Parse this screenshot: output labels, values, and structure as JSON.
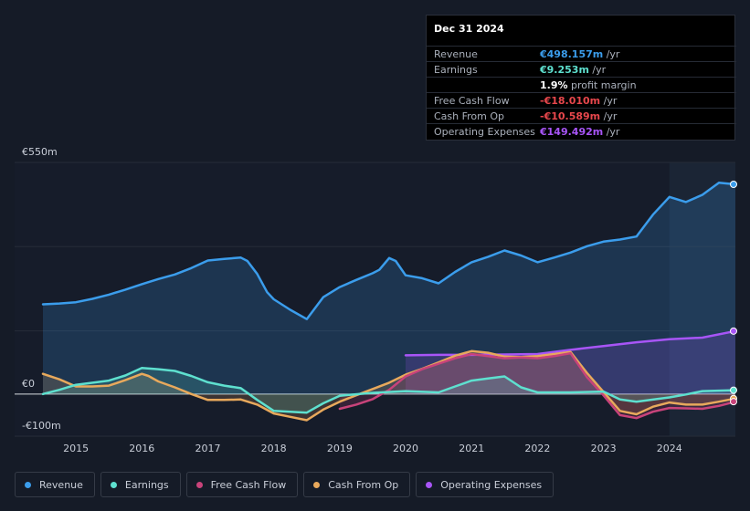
{
  "tooltip": {
    "date": "Dec 31 2024",
    "rows": [
      {
        "label": "Revenue",
        "value": "€498.157m",
        "unit": " /yr",
        "color": "#3b9dec"
      },
      {
        "label": "Earnings",
        "value": "€9.253m",
        "unit": " /yr",
        "color": "#5ee0cf"
      },
      {
        "label": "",
        "value": "1.9%",
        "unit": " profit margin",
        "color": "#ffffff"
      },
      {
        "label": "Free Cash Flow",
        "value": "-€18.010m",
        "unit": " /yr",
        "color": "#e8474c"
      },
      {
        "label": "Cash From Op",
        "value": "-€10.589m",
        "unit": " /yr",
        "color": "#e8474c"
      },
      {
        "label": "Operating Expenses",
        "value": "€149.492m",
        "unit": " /yr",
        "color": "#a855f7"
      }
    ]
  },
  "legend": [
    {
      "label": "Revenue",
      "color": "#3b9dec"
    },
    {
      "label": "Earnings",
      "color": "#5ee0cf"
    },
    {
      "label": "Free Cash Flow",
      "color": "#c8437a"
    },
    {
      "label": "Cash From Op",
      "color": "#e8a95c"
    },
    {
      "label": "Operating Expenses",
      "color": "#a855f7"
    }
  ],
  "chart_data": {
    "type": "area",
    "title": "",
    "xlabel": "",
    "ylabel": "",
    "y_axis_labels": [
      {
        "value": 550,
        "label": "€550m"
      },
      {
        "value": 0,
        "label": "€0"
      },
      {
        "value": -100,
        "label": "-€100m"
      }
    ],
    "ylim": [
      -100,
      550
    ],
    "xlim": [
      2014.5,
      2025.0
    ],
    "x_ticks": [
      2015,
      2016,
      2017,
      2018,
      2019,
      2020,
      2021,
      2022,
      2023,
      2024
    ],
    "highlight_from": 2024.0,
    "series": [
      {
        "name": "Revenue",
        "color": "#3b9dec",
        "points": [
          [
            2014.5,
            213
          ],
          [
            2014.75,
            215
          ],
          [
            2015,
            218
          ],
          [
            2015.25,
            226
          ],
          [
            2015.5,
            236
          ],
          [
            2015.75,
            248
          ],
          [
            2016,
            261
          ],
          [
            2016.25,
            273
          ],
          [
            2016.5,
            284
          ],
          [
            2016.75,
            299
          ],
          [
            2017,
            317
          ],
          [
            2017.25,
            321
          ],
          [
            2017.5,
            324
          ],
          [
            2017.6,
            316
          ],
          [
            2017.75,
            285
          ],
          [
            2017.9,
            242
          ],
          [
            2018,
            225
          ],
          [
            2018.25,
            200
          ],
          [
            2018.5,
            178
          ],
          [
            2018.75,
            230
          ],
          [
            2019,
            254
          ],
          [
            2019.25,
            271
          ],
          [
            2019.5,
            287
          ],
          [
            2019.6,
            295
          ],
          [
            2019.75,
            323
          ],
          [
            2019.85,
            316
          ],
          [
            2020,
            282
          ],
          [
            2020.25,
            275
          ],
          [
            2020.5,
            263
          ],
          [
            2020.75,
            290
          ],
          [
            2021,
            313
          ],
          [
            2021.25,
            326
          ],
          [
            2021.5,
            341
          ],
          [
            2021.75,
            329
          ],
          [
            2022,
            313
          ],
          [
            2022.25,
            324
          ],
          [
            2022.5,
            336
          ],
          [
            2022.75,
            351
          ],
          [
            2023,
            362
          ],
          [
            2023.25,
            367
          ],
          [
            2023.5,
            374
          ],
          [
            2023.75,
            426
          ],
          [
            2024,
            468
          ],
          [
            2024.25,
            456
          ],
          [
            2024.5,
            473
          ],
          [
            2024.75,
            502
          ],
          [
            2025,
            498
          ]
        ]
      },
      {
        "name": "Earnings",
        "color": "#5ee0cf",
        "points": [
          [
            2014.5,
            0
          ],
          [
            2014.75,
            10
          ],
          [
            2015,
            22
          ],
          [
            2015.5,
            32
          ],
          [
            2015.75,
            44
          ],
          [
            2016,
            62
          ],
          [
            2016.25,
            59
          ],
          [
            2016.5,
            55
          ],
          [
            2016.75,
            43
          ],
          [
            2017,
            28
          ],
          [
            2017.25,
            20
          ],
          [
            2017.5,
            14
          ],
          [
            2017.75,
            -14
          ],
          [
            2018,
            -40
          ],
          [
            2018.25,
            -42
          ],
          [
            2018.5,
            -44
          ],
          [
            2018.75,
            -22
          ],
          [
            2019,
            -4
          ],
          [
            2019.5,
            3
          ],
          [
            2020,
            7
          ],
          [
            2020.5,
            4
          ],
          [
            2020.75,
            18
          ],
          [
            2021,
            32
          ],
          [
            2021.25,
            37
          ],
          [
            2021.5,
            42
          ],
          [
            2021.75,
            16
          ],
          [
            2022,
            4
          ],
          [
            2022.5,
            4
          ],
          [
            2023,
            6
          ],
          [
            2023.25,
            -13
          ],
          [
            2023.5,
            -18
          ],
          [
            2024,
            -8
          ],
          [
            2024.25,
            -1
          ],
          [
            2024.5,
            7
          ],
          [
            2025,
            9.25
          ]
        ]
      },
      {
        "name": "Free Cash Flow",
        "color": "#c8437a",
        "points": [
          [
            2019,
            -35
          ],
          [
            2019.25,
            -25
          ],
          [
            2019.5,
            -12
          ],
          [
            2019.75,
            10
          ],
          [
            2020,
            42
          ],
          [
            2020.25,
            59
          ],
          [
            2020.5,
            72
          ],
          [
            2020.75,
            85
          ],
          [
            2021,
            95
          ],
          [
            2021.25,
            90
          ],
          [
            2021.5,
            85
          ],
          [
            2021.75,
            87
          ],
          [
            2022,
            85
          ],
          [
            2022.25,
            90
          ],
          [
            2022.5,
            97
          ],
          [
            2022.75,
            40
          ],
          [
            2023,
            -3
          ],
          [
            2023.25,
            -50
          ],
          [
            2023.5,
            -57
          ],
          [
            2023.75,
            -42
          ],
          [
            2024,
            -33
          ],
          [
            2024.25,
            -34
          ],
          [
            2024.5,
            -35
          ],
          [
            2024.75,
            -28
          ],
          [
            2025,
            -18
          ]
        ]
      },
      {
        "name": "Cash From Op",
        "color": "#e8a95c",
        "points": [
          [
            2014.5,
            48
          ],
          [
            2014.75,
            35
          ],
          [
            2015,
            18
          ],
          [
            2015.25,
            18
          ],
          [
            2015.5,
            20
          ],
          [
            2015.75,
            33
          ],
          [
            2016,
            48
          ],
          [
            2016.1,
            43
          ],
          [
            2016.25,
            30
          ],
          [
            2016.5,
            16
          ],
          [
            2016.75,
            0
          ],
          [
            2017,
            -14
          ],
          [
            2017.25,
            -14
          ],
          [
            2017.5,
            -13
          ],
          [
            2017.75,
            -25
          ],
          [
            2018,
            -46
          ],
          [
            2018.25,
            -54
          ],
          [
            2018.5,
            -62
          ],
          [
            2018.75,
            -37
          ],
          [
            2019,
            -18
          ],
          [
            2019.25,
            -3
          ],
          [
            2019.5,
            12
          ],
          [
            2019.75,
            27
          ],
          [
            2020,
            46
          ],
          [
            2020.25,
            60
          ],
          [
            2020.5,
            75
          ],
          [
            2020.75,
            91
          ],
          [
            2021,
            102
          ],
          [
            2021.25,
            98
          ],
          [
            2021.5,
            89
          ],
          [
            2021.75,
            88
          ],
          [
            2022,
            90
          ],
          [
            2022.25,
            95
          ],
          [
            2022.5,
            100
          ],
          [
            2022.75,
            50
          ],
          [
            2023,
            5
          ],
          [
            2023.25,
            -40
          ],
          [
            2023.5,
            -48
          ],
          [
            2023.75,
            -30
          ],
          [
            2024,
            -20
          ],
          [
            2024.25,
            -25
          ],
          [
            2024.5,
            -25
          ],
          [
            2024.75,
            -18
          ],
          [
            2025,
            -10.6
          ]
        ]
      },
      {
        "name": "Operating Expenses",
        "color": "#a855f7",
        "points": [
          [
            2020,
            92
          ],
          [
            2020.5,
            93
          ],
          [
            2021,
            93
          ],
          [
            2021.5,
            94
          ],
          [
            2022,
            95
          ],
          [
            2022.5,
            105
          ],
          [
            2023,
            114
          ],
          [
            2023.5,
            123
          ],
          [
            2024,
            130
          ],
          [
            2024.5,
            134
          ],
          [
            2025,
            149.5
          ]
        ]
      }
    ]
  }
}
